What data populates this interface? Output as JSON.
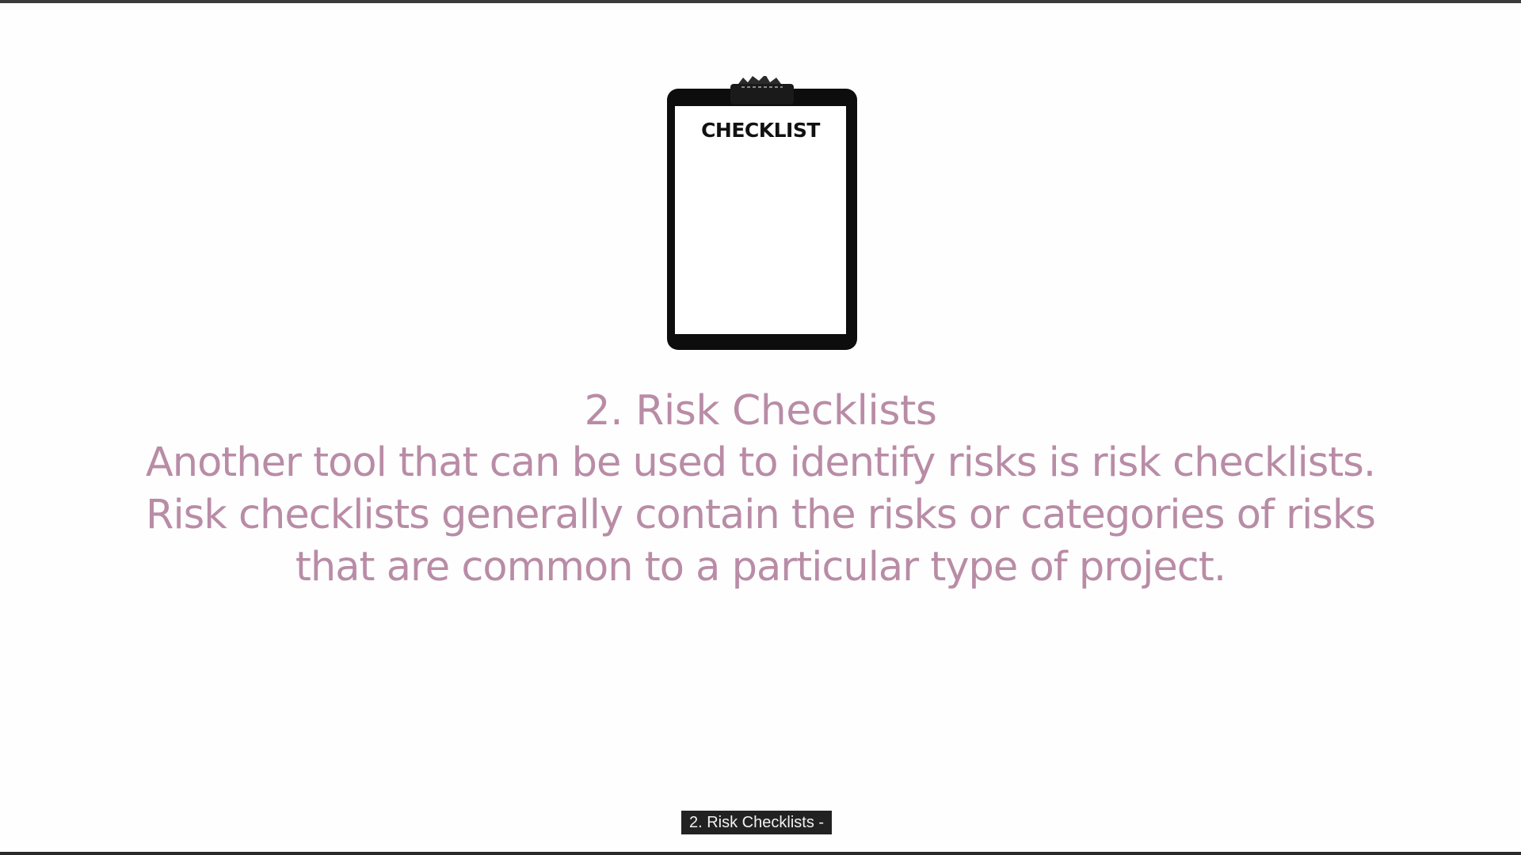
{
  "illustration": {
    "label": "CHECKLIST",
    "icon": "clipboard-icon"
  },
  "slide": {
    "heading": "2. Risk Checklists",
    "body_lines": [
      "Another tool that can be used to identify risks is risk checklists.",
      "Risk checklists generally contain the risks or categories of risks",
      "that are common to a particular type of project."
    ]
  },
  "caption": {
    "text": "2. Risk Checklists -"
  },
  "colors": {
    "text_accent": "#b98ca6",
    "caption_bg": "#222222",
    "caption_fg": "#f2f2f2",
    "background": "#fefefe"
  }
}
